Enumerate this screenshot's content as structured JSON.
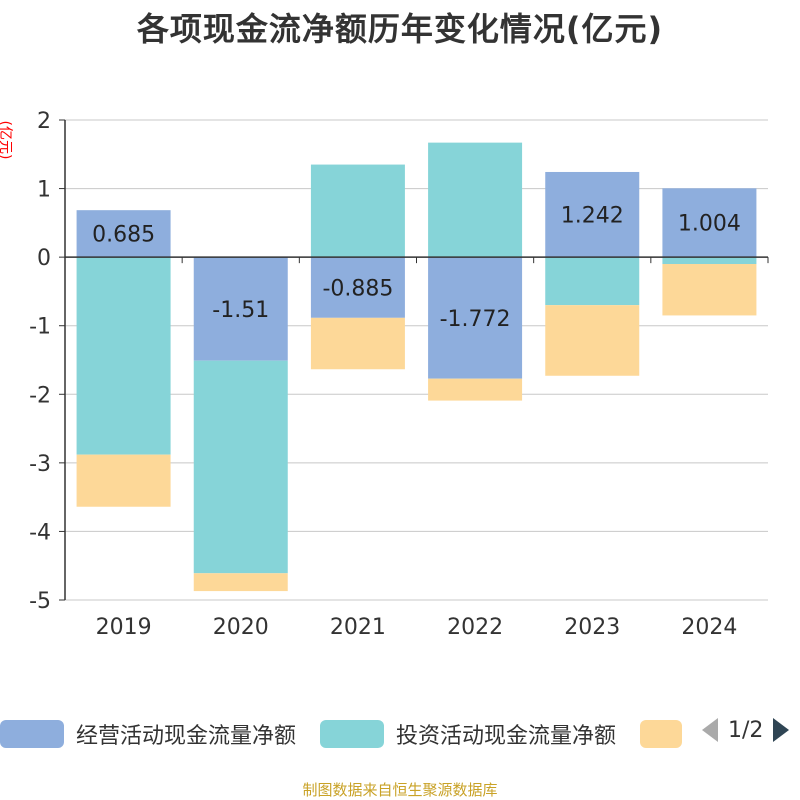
{
  "title": "各项现金流净额历年变化情况(亿元)",
  "unit_label": "(亿元)",
  "source": "制图数据来自恒生聚源数据库",
  "pager": {
    "text": "1/2"
  },
  "colors": {
    "operating": "#8eaedd",
    "investing": "#86d4d8",
    "financing": "#fdd898"
  },
  "legend": [
    {
      "label": "经营活动现金流量净额"
    },
    {
      "label": "投资活动现金流量净额"
    },
    {
      "label": ""
    }
  ],
  "chart_data": {
    "type": "bar",
    "stacked": true,
    "title": "各项现金流净额历年变化情况(亿元)",
    "ylabel": "(亿元)",
    "categories": [
      "2019",
      "2020",
      "2021",
      "2022",
      "2023",
      "2024"
    ],
    "ylim": [
      -5,
      2
    ],
    "yticks": [
      2,
      1,
      0,
      -1,
      -2,
      -3,
      -4,
      -5
    ],
    "grid": true,
    "legend_position": "bottom",
    "series": [
      {
        "name": "经营活动现金流量净额",
        "values": [
          0.685,
          -1.51,
          -0.885,
          -1.772,
          1.242,
          1.004
        ],
        "labels": [
          "0.685",
          "-1.51",
          "-0.885",
          "-1.772",
          "1.242",
          "1.004"
        ]
      },
      {
        "name": "投资活动现金流量净额",
        "values": [
          -2.88,
          -3.1,
          1.35,
          1.67,
          -0.7,
          -0.1
        ],
        "labels": []
      },
      {
        "values": [
          -0.76,
          -0.26,
          -0.75,
          -0.32,
          -1.03,
          -0.75
        ],
        "labels": []
      }
    ]
  }
}
